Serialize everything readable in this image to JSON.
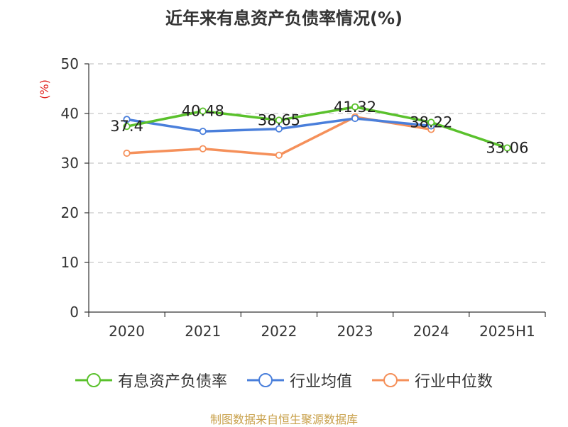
{
  "chart_data": {
    "type": "line",
    "title": "近年来有息资产负债率情况(%)",
    "ylabel": "(%)",
    "categories": [
      "2020",
      "2021",
      "2022",
      "2023",
      "2024",
      "2025H1"
    ],
    "ylim": [
      0,
      50
    ],
    "yticks": [
      0,
      10,
      20,
      30,
      40,
      50
    ],
    "grid": true,
    "legend_position": "bottom",
    "series": [
      {
        "name": "有息资产负债率",
        "color": "#5ac12c",
        "values": [
          37.4,
          40.48,
          38.65,
          41.32,
          38.22,
          33.06
        ],
        "labels": [
          "37.4",
          "40.48",
          "38.65",
          "41.32",
          "38.22",
          "33.06"
        ]
      },
      {
        "name": "行业均值",
        "color": "#4a7fdb",
        "values": [
          38.8,
          36.4,
          36.9,
          39.0,
          37.5,
          null
        ]
      },
      {
        "name": "行业中位数",
        "color": "#f5905a",
        "values": [
          32.0,
          32.9,
          31.6,
          39.3,
          36.8,
          null
        ]
      }
    ]
  },
  "source_note": "制图数据来自恒生聚源数据库"
}
